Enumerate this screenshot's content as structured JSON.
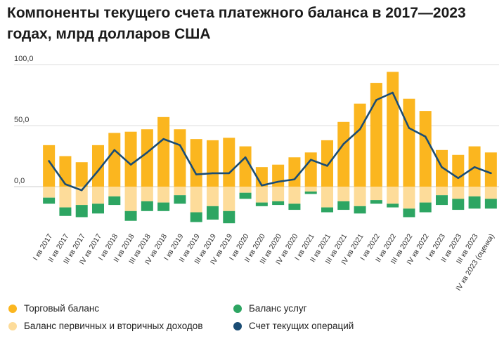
{
  "title": "Компоненты текущего счета платежного баланса в 2017—2023 годах, млрд долларов США",
  "colors": {
    "trade": "#FBB61F",
    "income": "#FDDC9A",
    "services": "#2DA562",
    "current": "#1A4C74",
    "grid": "#DDDDDD",
    "zero": "#CCCCCC"
  },
  "legend": [
    {
      "label": "Торговый баланс",
      "color_key": "trade"
    },
    {
      "label": "Баланс услуг",
      "color_key": "services"
    },
    {
      "label": "Баланс первичных и вторичных доходов",
      "color_key": "income"
    },
    {
      "label": "Счет текущих операций",
      "color_key": "current"
    }
  ],
  "chart_data": {
    "type": "bar",
    "stacked": true,
    "title": "Компоненты текущего счета платежного баланса в 2017—2023 годах, млрд долларов США",
    "ylim": [
      -32,
      100
    ],
    "yticks": [
      0,
      50,
      100
    ],
    "ytick_labels": [
      "0,0",
      "50,0",
      "100,0"
    ],
    "categories": [
      "I кв 2017",
      "II кв 2017",
      "III кв 2017",
      "IV кв 2017",
      "I кв 2018",
      "II кв 2018",
      "III кв 2018",
      "IV кв 2018",
      "I кв 2019",
      "II кв 2019",
      "III кв 2019",
      "IV кв 2019",
      "I кв 2020",
      "II кв 2020",
      "III кв 2020",
      "IV кв 2020",
      "I кв 2021",
      "II кв 2021",
      "III кв 2021",
      "IV кв 2021",
      "I кв 2022",
      "II кв 2022",
      "III кв 2022",
      "IV кв 2022",
      "I кв 2023",
      "II кв 2023",
      "III кв 2023",
      "IV кв 2023 (оценка)"
    ],
    "series": [
      {
        "name": "Торговый баланс",
        "type": "bar",
        "color_key": "trade",
        "values": [
          34,
          25,
          20,
          34,
          44,
          45,
          47,
          57,
          47,
          39,
          38,
          40,
          33,
          16,
          18,
          24,
          28,
          38,
          53,
          68,
          85,
          94,
          72,
          62,
          30,
          26,
          33,
          28
        ]
      },
      {
        "name": "Баланс первичных и вторичных доходов",
        "type": "bar",
        "color_key": "income",
        "values": [
          -9,
          -17,
          -15,
          -14,
          -8,
          -20,
          -12,
          -13,
          -7,
          -21,
          -16,
          -20,
          -5,
          -13,
          -12,
          -14,
          -4,
          -17,
          -12,
          -16,
          -11,
          -14,
          -18,
          -13,
          -7,
          -10,
          -8,
          -10
        ]
      },
      {
        "name": "Баланс услуг",
        "type": "bar",
        "color_key": "services",
        "values": [
          -5,
          -7,
          -10,
          -8,
          -7,
          -8,
          -8,
          -7,
          -7,
          -8,
          -11,
          -10,
          -5,
          -3,
          -3,
          -5,
          -2,
          -4,
          -7,
          -6,
          -3,
          -3,
          -7,
          -8,
          -8,
          -9,
          -10,
          -8
        ]
      },
      {
        "name": "Счет текущих операций",
        "type": "line",
        "color_key": "current",
        "values": [
          21,
          2,
          -3,
          13,
          30,
          18,
          28,
          39,
          34,
          10,
          11,
          11,
          24,
          1,
          4,
          6,
          22,
          17,
          35,
          47,
          71,
          77,
          48,
          41,
          16,
          7,
          16,
          11
        ]
      }
    ],
    "legend_position": "bottom"
  }
}
